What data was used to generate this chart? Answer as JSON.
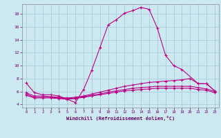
{
  "bg_color": "#cce8f0",
  "grid_color": "#aaccdd",
  "line_color": "#bb0088",
  "xlabel": "Windchill (Refroidissement éolien,°C)",
  "xlim": [
    -0.5,
    23.5
  ],
  "ylim": [
    3.5,
    19.5
  ],
  "yticks": [
    4,
    6,
    8,
    10,
    12,
    14,
    16,
    18
  ],
  "xticks": [
    0,
    1,
    2,
    3,
    4,
    5,
    6,
    7,
    8,
    9,
    10,
    11,
    12,
    13,
    14,
    15,
    16,
    17,
    18,
    19,
    20,
    21,
    22,
    23
  ],
  "line_main": {
    "x": [
      0,
      1,
      2,
      3,
      4,
      5,
      6,
      7,
      8,
      9,
      10,
      11,
      12,
      13,
      14,
      15,
      16,
      17,
      18,
      19,
      21,
      22,
      23
    ],
    "y": [
      7.3,
      5.8,
      5.5,
      5.5,
      5.3,
      4.8,
      4.3,
      6.3,
      9.3,
      12.8,
      16.3,
      17.1,
      18.1,
      18.5,
      19.0,
      18.7,
      15.8,
      11.6,
      10.0,
      9.4,
      7.2,
      7.2,
      6.1
    ]
  },
  "line_a": {
    "x": [
      0,
      1,
      2,
      3,
      4,
      5,
      6,
      7,
      8,
      9,
      10,
      11,
      12,
      13,
      14,
      15,
      16,
      17,
      18,
      19,
      20,
      21,
      22,
      23
    ],
    "y": [
      5.8,
      5.3,
      5.3,
      5.2,
      5.1,
      5.0,
      5.1,
      5.3,
      5.6,
      5.9,
      6.2,
      6.5,
      6.8,
      7.0,
      7.2,
      7.4,
      7.5,
      7.6,
      7.7,
      7.8,
      8.0,
      7.2,
      7.2,
      6.1
    ]
  },
  "line_b": {
    "x": [
      0,
      1,
      2,
      3,
      4,
      5,
      6,
      7,
      8,
      9,
      10,
      11,
      12,
      13,
      14,
      15,
      16,
      17,
      18,
      19,
      20,
      21,
      22,
      23
    ],
    "y": [
      5.6,
      5.1,
      5.1,
      5.1,
      5.0,
      4.9,
      5.0,
      5.2,
      5.4,
      5.6,
      5.9,
      6.1,
      6.3,
      6.5,
      6.6,
      6.7,
      6.8,
      6.8,
      6.8,
      6.8,
      6.8,
      6.6,
      6.4,
      6.0
    ]
  },
  "line_c": {
    "x": [
      0,
      1,
      2,
      3,
      4,
      5,
      6,
      7,
      8,
      9,
      10,
      11,
      12,
      13,
      14,
      15,
      16,
      17,
      18,
      19,
      20,
      21,
      22,
      23
    ],
    "y": [
      5.4,
      5.0,
      5.0,
      5.0,
      4.9,
      4.8,
      4.9,
      5.1,
      5.3,
      5.5,
      5.7,
      5.9,
      6.1,
      6.2,
      6.3,
      6.4,
      6.5,
      6.5,
      6.5,
      6.5,
      6.5,
      6.3,
      6.2,
      5.8
    ]
  }
}
